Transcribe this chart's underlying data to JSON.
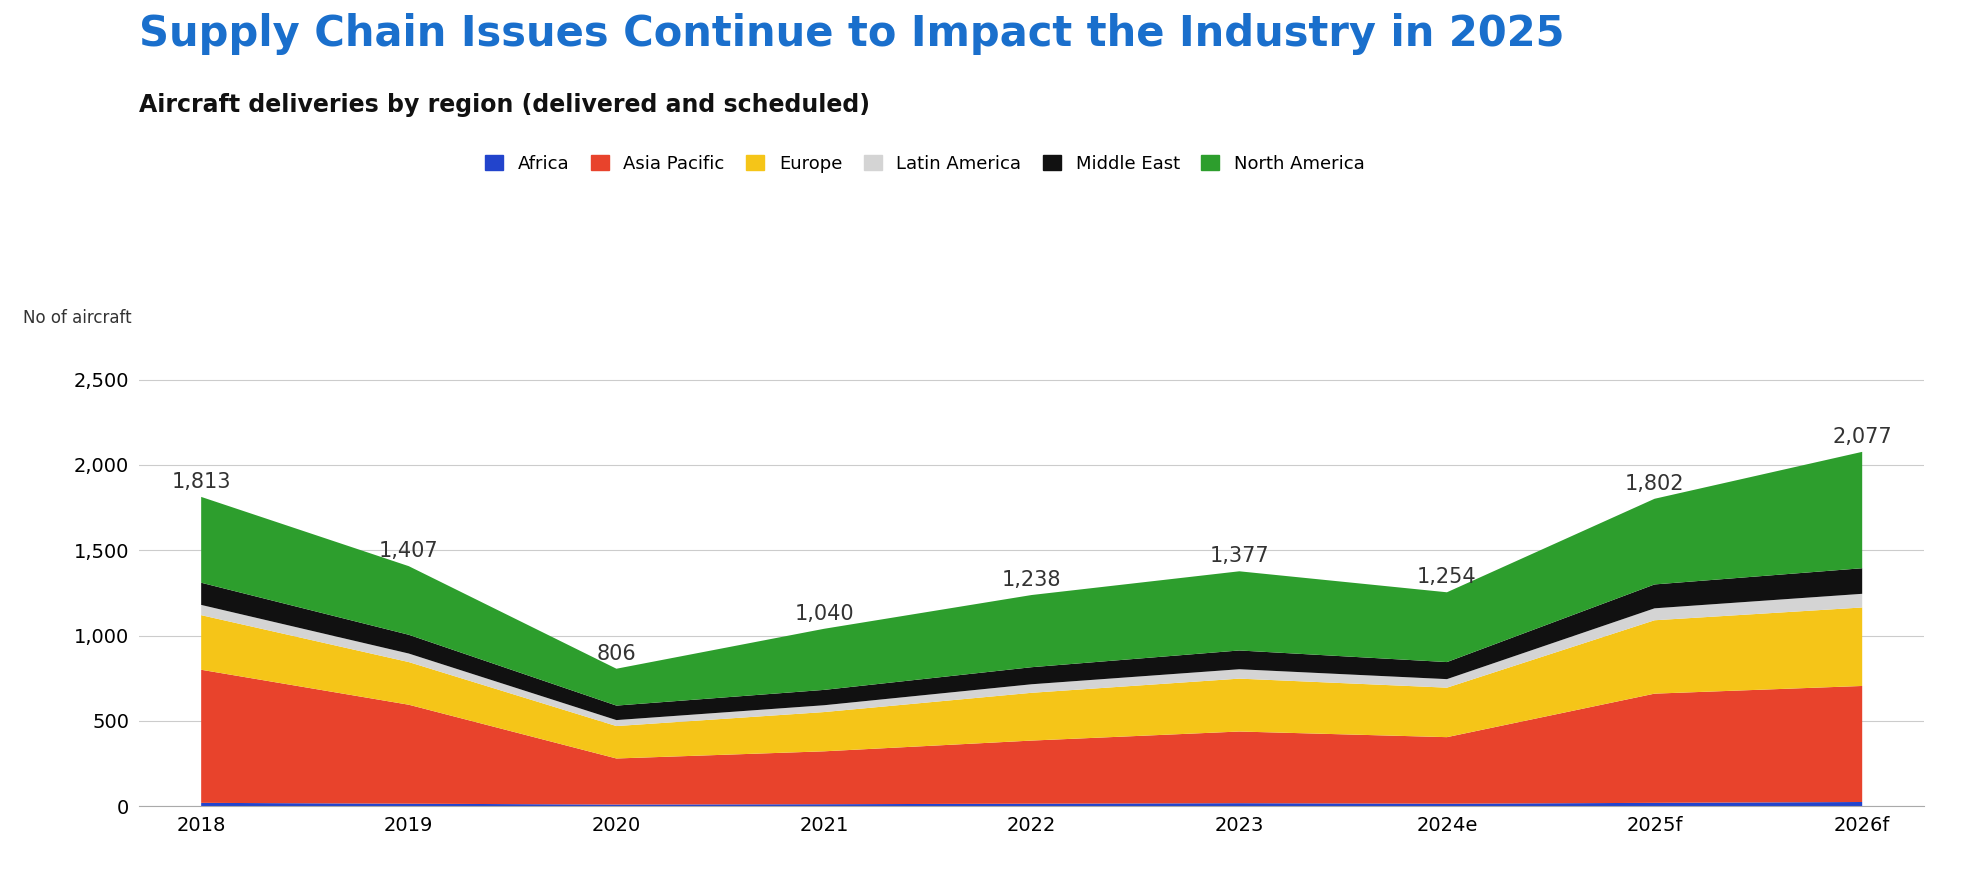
{
  "title": "Supply Chain Issues Continue to Impact the Industry in 2025",
  "subtitle": "Aircraft deliveries by region (delivered and scheduled)",
  "ylabel": "No of aircraft",
  "years": [
    "2018",
    "2019",
    "2020",
    "2021",
    "2022",
    "2023",
    "2024e",
    "2025f",
    "2026f"
  ],
  "totals": [
    1813,
    1407,
    806,
    1040,
    1238,
    1377,
    1254,
    1802,
    2077
  ],
  "regions": [
    "Africa",
    "Asia Pacific",
    "Europe",
    "Latin America",
    "Middle East",
    "North America"
  ],
  "colors": [
    "#2244cc",
    "#e8432c",
    "#f5c518",
    "#d4d4d4",
    "#111111",
    "#2d9e2d"
  ],
  "data": {
    "Africa": [
      20,
      15,
      10,
      12,
      15,
      18,
      15,
      20,
      25
    ],
    "Asia Pacific": [
      780,
      580,
      270,
      310,
      370,
      420,
      390,
      640,
      680
    ],
    "Europe": [
      320,
      250,
      190,
      230,
      280,
      310,
      290,
      430,
      460
    ],
    "Latin America": [
      60,
      50,
      35,
      40,
      50,
      55,
      50,
      70,
      80
    ],
    "Middle East": [
      130,
      110,
      85,
      90,
      100,
      110,
      100,
      140,
      150
    ],
    "North America": [
      503,
      402,
      216,
      358,
      423,
      464,
      409,
      502,
      682
    ]
  },
  "ylim": [
    0,
    2700
  ],
  "yticks": [
    0,
    500,
    1000,
    1500,
    2000,
    2500
  ],
  "title_color": "#1a6fcc",
  "title_fontsize": 30,
  "subtitle_fontsize": 17,
  "annotation_fontsize": 15,
  "tick_fontsize": 14,
  "legend_fontsize": 13,
  "ylabel_fontsize": 12,
  "background_color": "#ffffff"
}
